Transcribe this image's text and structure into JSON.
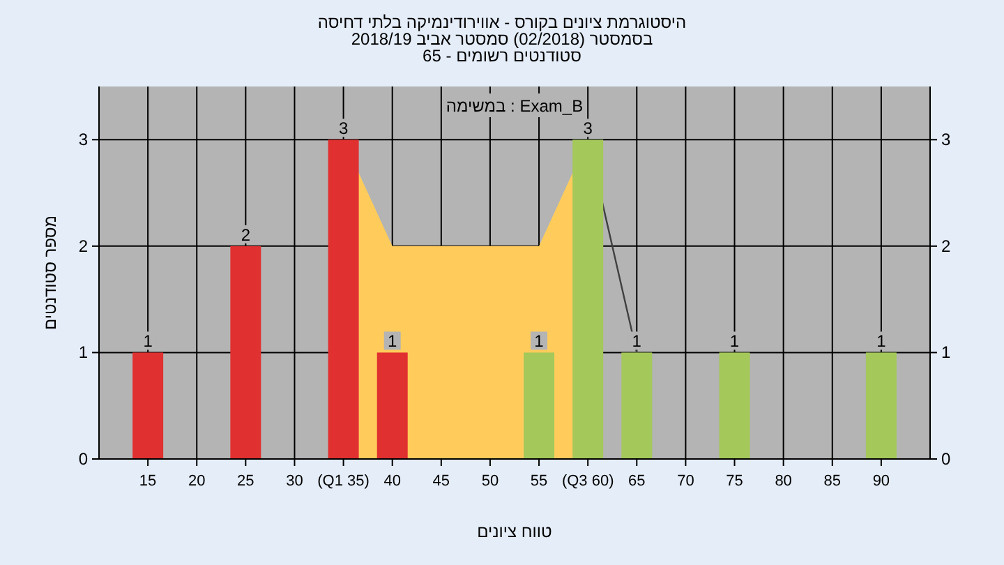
{
  "chart_data": {
    "type": "bar",
    "title": "היסטוגרמת ציונים בקורס - אווירודינמיקה בלתי דחיסה",
    "subtitle": [
      "בסמסטר (02/2018) סמסטר אביב 2018/19",
      "סטודנטים רשומים - 65"
    ],
    "xlabel": "טווח ציונים",
    "ylabel": "מספר סטודנטים",
    "annotations": [
      "במשימה : Exam_B"
    ],
    "series": [
      {
        "type": "area",
        "color": "#ffcc5c",
        "x": [
          35,
          40,
          55,
          60
        ],
        "values": [
          3,
          2,
          2,
          3
        ]
      },
      {
        "type": "line",
        "color": "#404040",
        "x": [
          60,
          65
        ],
        "values": [
          3,
          1
        ]
      },
      {
        "x": [
          15,
          25,
          35,
          40,
          55,
          60,
          65,
          75,
          90
        ],
        "values": [
          1,
          2,
          3,
          1,
          1,
          3,
          1,
          1,
          1
        ],
        "value_labels": [
          "1",
          "2",
          "3",
          "1",
          "1",
          "3",
          "1",
          "1",
          "1"
        ],
        "colors": [
          "#e03030",
          "#e03030",
          "#e03030",
          "#e03030",
          "#a4c85a",
          "#a4c85a",
          "#a4c85a",
          "#a4c85a",
          "#a4c85a"
        ]
      }
    ],
    "xlim": [
      10,
      95
    ],
    "xticks": [
      15,
      20,
      25,
      30,
      {
        "value": 35,
        "label": "(Q1 35)"
      },
      40,
      45,
      50,
      55,
      {
        "value": 60,
        "label": "(Q3 60)"
      },
      65,
      70,
      75,
      80,
      85,
      90
    ],
    "ylim": [
      0,
      3.5
    ],
    "yticks": [
      0,
      1,
      2,
      3
    ],
    "y2lim": [
      0,
      3.5
    ],
    "y2ticks": [
      0,
      1,
      2,
      3
    ],
    "grid": true
  }
}
